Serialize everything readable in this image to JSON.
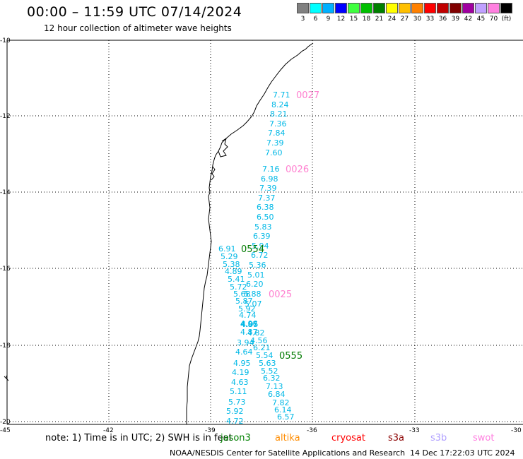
{
  "header": {
    "title": "00:00 – 11:59 UTC 07/14/2024",
    "subtitle": "12 hour collection of altimeter wave heights"
  },
  "legend": {
    "colors": [
      "#808080",
      "#00ffff",
      "#00b0ff",
      "#0000ff",
      "#40ff40",
      "#00c000",
      "#008000",
      "#ffff00",
      "#ffc000",
      "#ff8000",
      "#ff0000",
      "#c00000",
      "#800000",
      "#a000a0",
      "#c0a0ff",
      "#ff80e0",
      "#000000"
    ],
    "labels": [
      "3",
      "6",
      "9",
      "12",
      "15",
      "18",
      "21",
      "24",
      "27",
      "30",
      "33",
      "36",
      "39",
      "42",
      "45",
      "70",
      "(ft)"
    ]
  },
  "axes": {
    "lon_labels": [
      "-45",
      "-42",
      "-39",
      "-36",
      "-33",
      "-30"
    ],
    "lat_labels": [
      "-10",
      "-12",
      "-14",
      "-16",
      "-18",
      "-20"
    ]
  },
  "passes": [
    {
      "id": "0027",
      "color": "pink"
    },
    {
      "id": "0026",
      "color": "pink"
    },
    {
      "id": "0554",
      "color": "green"
    },
    {
      "id": "0025",
      "color": "pink"
    },
    {
      "id": "0555",
      "color": "green"
    }
  ],
  "observations": [
    "7.71",
    "8.24",
    "8.21",
    "7.36",
    "7.84",
    "7.39",
    "7.60",
    "7.16",
    "6.98",
    "7.39",
    "7.37",
    "6.38",
    "6.50",
    "5.83",
    "6.39",
    "5.94",
    "6.91",
    "6.72",
    "5.29",
    "5.38",
    "5.36",
    "4.89",
    "5.01",
    "5.41",
    "6.20",
    "5.72",
    "5.68",
    "5.88",
    "5.87",
    "5.07",
    "5.92",
    "4.74",
    "4.87",
    "4.06",
    "4.95",
    "4.82",
    "4.87",
    "3.94",
    "4.56",
    "6.21",
    "4.64",
    "5.54",
    "4.95",
    "5.63",
    "5.52",
    "4.19",
    "6.32",
    "4.63",
    "7.13",
    "5.11",
    "6.84",
    "5.73",
    "7.82",
    "5.92",
    "6.14",
    "4.72",
    "6.57"
  ],
  "footer": {
    "note": "note:  1) Time is in UTC;  2) SWH is in feet",
    "satellites": [
      {
        "name": "jason3",
        "color": "#008000"
      },
      {
        "name": "altika",
        "color": "#ff8c00"
      },
      {
        "name": "cryosat",
        "color": "#ff0000"
      },
      {
        "name": "s3a",
        "color": "#8b0000"
      },
      {
        "name": "s3b",
        "color": "#b0a0ff"
      },
      {
        "name": "swot",
        "color": "#ff80e0"
      }
    ],
    "credit": "NOAA/NESDIS Center for Satellite Applications and Research",
    "generated": "14 Dec 17:22:03 UTC 2024"
  }
}
